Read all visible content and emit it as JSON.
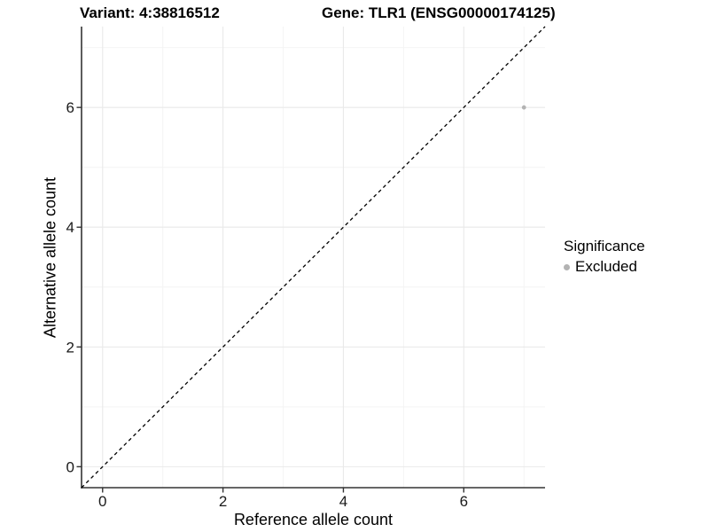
{
  "header": {
    "variant_title": "Variant: 4:38816512",
    "gene_title": "Gene: TLR1 (ENSG00000174125)"
  },
  "chart_data": {
    "type": "scatter",
    "xlabel": "Reference allele count",
    "ylabel": "Alternative allele count",
    "xlim": [
      -0.35,
      7.35
    ],
    "ylim": [
      -0.35,
      7.35
    ],
    "x_ticks": [
      0,
      2,
      4,
      6
    ],
    "y_ticks": [
      0,
      2,
      4,
      6
    ],
    "minor_gridlines": [
      1,
      3,
      5,
      7
    ],
    "grid": true,
    "legend_position": "right",
    "points": [
      {
        "x": 7,
        "y": 6,
        "series": "Excluded"
      }
    ],
    "reference_line": {
      "kind": "identity-diagonal",
      "from": -0.35,
      "to": 7.35,
      "style": "dashed"
    }
  },
  "legend": {
    "title": "Significance",
    "items": [
      {
        "label": "Excluded",
        "color": "#b3b3b3"
      }
    ]
  },
  "colors": {
    "point": "#b3b3b3",
    "grid_major": "#e9e9e9",
    "grid_minor": "#f4f4f4",
    "axis_line": "#333333",
    "tick": "#333333",
    "dashed_line": "#000000",
    "background": "#ffffff"
  }
}
